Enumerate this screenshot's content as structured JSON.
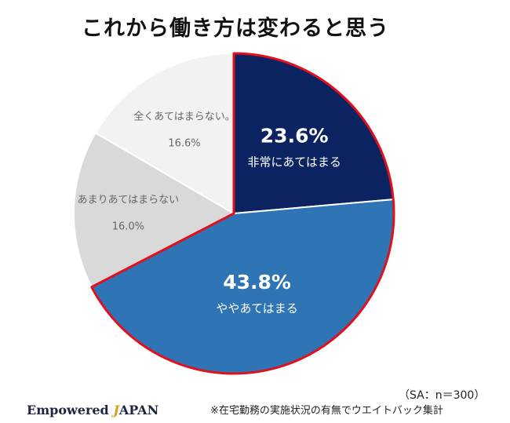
{
  "title": "これから働き方は変わると思う",
  "chart_data": {
    "type": "pie",
    "title": "これから働き方は変わると思う",
    "start_angle_deg": 0,
    "direction": "clockwise",
    "slices": [
      {
        "label": "非常にあてはまる",
        "value": 23.6,
        "display": "23.6%",
        "color": "#0b2461",
        "text_color": "#ffffff",
        "highlight": true
      },
      {
        "label": "ややあてはまる",
        "value": 43.8,
        "display": "43.8%",
        "color": "#2f74b5",
        "text_color": "#ffffff",
        "highlight": true
      },
      {
        "label": "あまりあてはまらない",
        "value": 16.0,
        "display": "16.0%",
        "color": "#d9d9d9",
        "text_color": "#666666",
        "highlight": false
      },
      {
        "label": "全くあてはまらない。",
        "value": 16.6,
        "display": "16.6%",
        "color": "#f2f2f2",
        "text_color": "#666666",
        "highlight": false
      }
    ],
    "highlight_outline_color": "#e0101c"
  },
  "sample_note": "（SA：n＝300）",
  "footnote": "※在宅勤務の実施状況の有無でウエイトバック集計",
  "brand": {
    "part1": "Empowered",
    "slash": "J",
    "part2": "APAN"
  }
}
